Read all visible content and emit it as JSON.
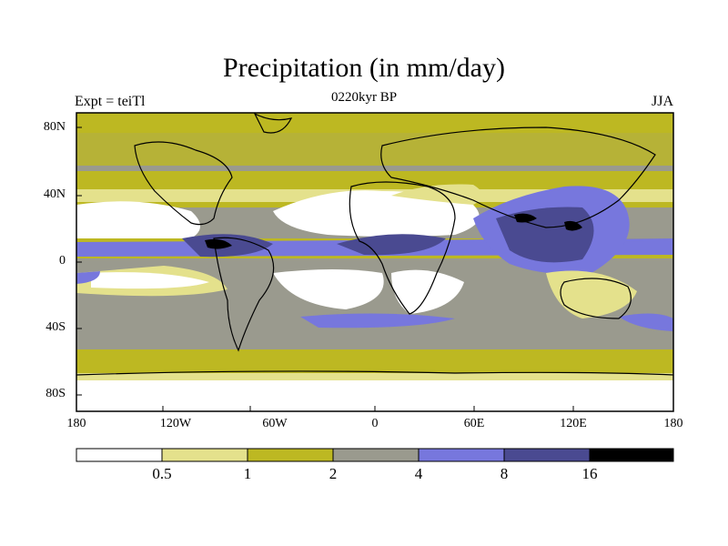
{
  "figure": {
    "title": "Precipitation (in mm/day)",
    "subtitle": "0220kyr BP",
    "left_label": "Expt = teiTl",
    "right_label": "JJA"
  },
  "map": {
    "lat_ticks": [
      {
        "label": "80N",
        "lat": 80
      },
      {
        "label": "40N",
        "lat": 40
      },
      {
        "label": "0",
        "lat": 0
      },
      {
        "label": "40S",
        "lat": -40
      },
      {
        "label": "80S",
        "lat": -80
      }
    ],
    "lon_ticks": [
      {
        "label": "180",
        "lon": -180
      },
      {
        "label": "120W",
        "lon": -120
      },
      {
        "label": "60W",
        "lon": -60
      },
      {
        "label": "0",
        "lon": 0
      },
      {
        "label": "60E",
        "lon": 60
      },
      {
        "label": "120E",
        "lon": 120
      },
      {
        "label": "180",
        "lon": 180
      }
    ]
  },
  "colorbar": {
    "colors": [
      "#ffffff",
      "#e4e18c",
      "#bdb822",
      "#9a9a8e",
      "#7777dd",
      "#4a4a91",
      "#000000"
    ],
    "labels": [
      "0.5",
      "1",
      "2",
      "4",
      "8",
      "16"
    ]
  }
}
